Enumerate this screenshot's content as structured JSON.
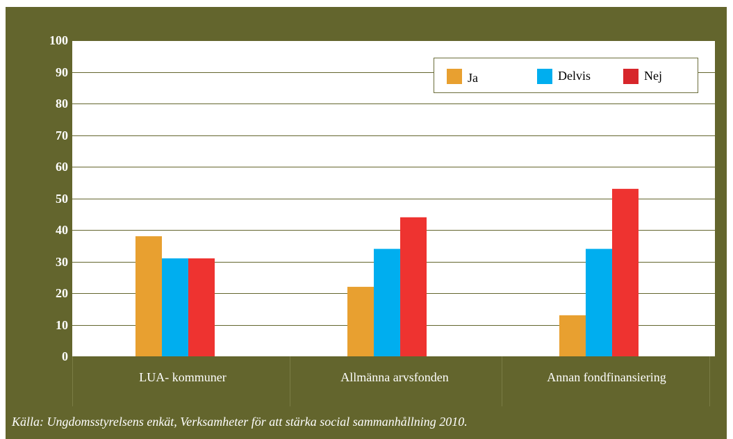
{
  "chart_data": {
    "type": "bar",
    "categories": [
      "LUA- kommuner",
      "Allmänna arvsfonden",
      "Annan fondfinansiering"
    ],
    "series": [
      {
        "name": "Ja",
        "color": "#e8a030",
        "values": [
          38,
          22,
          13
        ]
      },
      {
        "name": "Delvis",
        "color": "#00aeef",
        "values": [
          31,
          34,
          34
        ]
      },
      {
        "name": "Nej",
        "color": "#ee3330",
        "values": [
          31,
          44,
          53
        ]
      }
    ],
    "y_ticks": [
      "0",
      "10",
      "20",
      "30",
      "40",
      "50",
      "60",
      "70",
      "80",
      "90",
      "100"
    ],
    "ylim": [
      0,
      100
    ],
    "grid": true,
    "legend_position": "top-right"
  },
  "source_note": "Källa: Ungdomsstyrelsens enkät, Verksamheter för att stärka social sammanhållning 2010.",
  "colors": {
    "background": "#63652d",
    "plot": "#ffffff",
    "gridline": "#63652d"
  }
}
